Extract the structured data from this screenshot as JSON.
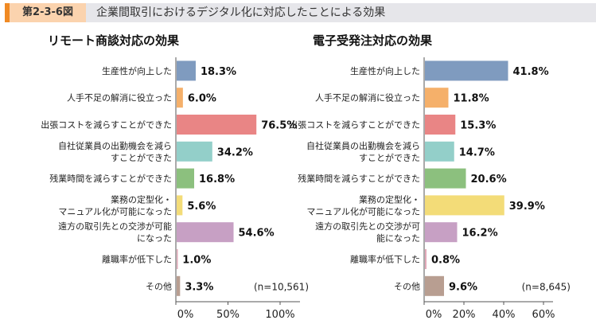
{
  "header": {
    "figure_number": "第2-3-6図",
    "title": "企業間取引におけるデジタル化に対応したことによる効果"
  },
  "chart_data": [
    {
      "type": "bar",
      "orientation": "horizontal",
      "title": "リモート商談対応の効果",
      "categories": [
        [
          "生産性が向上した"
        ],
        [
          "人手不足の解消に役立った"
        ],
        [
          "出張コストを減らすことができた"
        ],
        [
          "自社従業員の出勤機会を減ら",
          "すことができた"
        ],
        [
          "残業時間を減らすことができた"
        ],
        [
          "業務の定型化・",
          "マニュアル化が可能になった"
        ],
        [
          "遠方の取引先との交渉が可能",
          "になった"
        ],
        [
          "離職率が低下した"
        ],
        [
          "その他"
        ]
      ],
      "values": [
        18.3,
        6.0,
        76.5,
        34.2,
        16.8,
        5.6,
        54.6,
        1.0,
        3.3
      ],
      "labels": [
        "18.3%",
        "6.0%",
        "76.5%",
        "34.2%",
        "16.8%",
        "5.6%",
        "54.6%",
        "1.0%",
        "3.3%"
      ],
      "xlim": [
        0,
        120
      ],
      "ticks": [
        0,
        50,
        100
      ],
      "tick_labels": [
        "0%",
        "50%",
        "100%"
      ],
      "note": "(n=10,561)"
    },
    {
      "type": "bar",
      "orientation": "horizontal",
      "title": "電子受発注対応の効果",
      "categories": [
        [
          "生産性が向上した"
        ],
        [
          "人手不足の解消に役立った"
        ],
        [
          "出張コストを減らすことができた"
        ],
        [
          "自社従業員の出勤機会を減ら",
          "すことができた"
        ],
        [
          "残業時間を減らすことができた"
        ],
        [
          "業務の定型化・",
          "マニュアル化が可能になった"
        ],
        [
          "遠方の取引先との交渉が可",
          "能になった"
        ],
        [
          "離職率が低下した"
        ],
        [
          "その他"
        ]
      ],
      "values": [
        41.8,
        11.8,
        15.3,
        14.7,
        20.6,
        39.9,
        16.2,
        0.8,
        9.6
      ],
      "labels": [
        "41.8%",
        "11.8%",
        "15.3%",
        "14.7%",
        "20.6%",
        "39.9%",
        "16.2%",
        "0.8%",
        "9.6%"
      ],
      "xlim": [
        0,
        65
      ],
      "ticks": [
        0,
        20,
        40,
        60
      ],
      "tick_labels": [
        "0%",
        "20%",
        "40%",
        "60%"
      ],
      "note": "(n=8,645)"
    }
  ],
  "colors": [
    "#7f9bbf",
    "#f5b06a",
    "#e98585",
    "#93cfc9",
    "#8cc07e",
    "#f3dc78",
    "#c7a0c4",
    "#e2a8b8",
    "#b89e91"
  ]
}
